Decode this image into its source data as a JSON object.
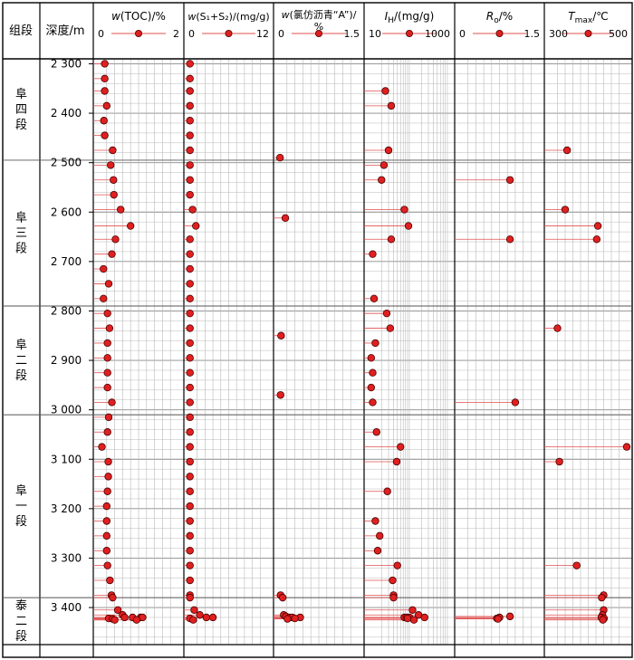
{
  "header": {
    "zone": "组段",
    "depth": "深度/m"
  },
  "colors": {
    "marker_fill": "#e02020",
    "marker_stroke": "#4a0000",
    "connector": "#e25050",
    "grid": "#b9b9b9",
    "frame": "#000000"
  },
  "chart_data": {
    "type": "scatter",
    "orientation": "depth-log",
    "depth_axis": {
      "label": "深度/m",
      "ylim": [
        2290,
        3475
      ],
      "ticks": [
        2300,
        2400,
        2500,
        2600,
        2700,
        2800,
        2900,
        3000,
        3100,
        3200,
        3300,
        3400
      ],
      "tick_labels": [
        "2 300",
        "2 400",
        "2 500",
        "2 600",
        "2 700",
        "2 800",
        "2 900",
        "3 000",
        "3 100",
        "3 200",
        "3 300",
        "3 400"
      ]
    },
    "zones": [
      {
        "name": "阜四段",
        "top": 2290,
        "bottom": 2495
      },
      {
        "name": "阜三段",
        "top": 2495,
        "bottom": 2790
      },
      {
        "name": "阜二段",
        "top": 2790,
        "bottom": 3010
      },
      {
        "name": "阜一段",
        "top": 3010,
        "bottom": 3380
      },
      {
        "name": "泰二段",
        "top": 3380,
        "bottom": 3475
      }
    ],
    "tracks": [
      {
        "id": "toc",
        "title": "w(TOC)/%",
        "scale_min_label": "0",
        "scale_max_label": "2",
        "scale": "linear",
        "xlim": [
          0,
          2
        ],
        "points": [
          [
            2300,
            0.15
          ],
          [
            2330,
            0.15
          ],
          [
            2355,
            0.15
          ],
          [
            2385,
            0.2
          ],
          [
            2415,
            0.13
          ],
          [
            2445,
            0.15
          ],
          [
            2475,
            0.35
          ],
          [
            2505,
            0.3
          ],
          [
            2535,
            0.37
          ],
          [
            2565,
            0.38
          ],
          [
            2595,
            0.55
          ],
          [
            2628,
            0.8
          ],
          [
            2655,
            0.42
          ],
          [
            2685,
            0.33
          ],
          [
            2715,
            0.12
          ],
          [
            2745,
            0.25
          ],
          [
            2775,
            0.12
          ],
          [
            2805,
            0.22
          ],
          [
            2835,
            0.27
          ],
          [
            2865,
            0.22
          ],
          [
            2895,
            0.22
          ],
          [
            2925,
            0.22
          ],
          [
            2955,
            0.22
          ],
          [
            2985,
            0.33
          ],
          [
            3015,
            0.25
          ],
          [
            3045,
            0.22
          ],
          [
            3075,
            0.08
          ],
          [
            3105,
            0.24
          ],
          [
            3135,
            0.24
          ],
          [
            3165,
            0.22
          ],
          [
            3195,
            0.2
          ],
          [
            3225,
            0.2
          ],
          [
            3255,
            0.2
          ],
          [
            3285,
            0.2
          ],
          [
            3315,
            0.22
          ],
          [
            3345,
            0.28
          ],
          [
            3375,
            0.32
          ],
          [
            3380,
            0.35
          ],
          [
            3405,
            0.48
          ],
          [
            3415,
            0.6
          ],
          [
            3420,
            0.65
          ],
          [
            3420,
            0.85
          ],
          [
            3420,
            1.05
          ],
          [
            3420,
            1.1
          ],
          [
            3422,
            0.25
          ],
          [
            3423,
            0.35
          ],
          [
            3425,
            0.4
          ],
          [
            3425,
            0.95
          ]
        ]
      },
      {
        "id": "s1s2",
        "title": "w(S₁+S₂)/(mg/g)",
        "scale_min_label": "0",
        "scale_max_label": "12",
        "scale": "linear",
        "xlim": [
          0,
          12
        ],
        "points": [
          [
            2300,
            0.1
          ],
          [
            2330,
            0.1
          ],
          [
            2355,
            0.1
          ],
          [
            2385,
            0.1
          ],
          [
            2415,
            0.1
          ],
          [
            2445,
            0.1
          ],
          [
            2475,
            0.1
          ],
          [
            2505,
            0.1
          ],
          [
            2535,
            0.1
          ],
          [
            2565,
            0.1
          ],
          [
            2595,
            0.5
          ],
          [
            2628,
            1.0
          ],
          [
            2655,
            0.1
          ],
          [
            2685,
            0.1
          ],
          [
            2715,
            0.1
          ],
          [
            2745,
            0.1
          ],
          [
            2775,
            0.1
          ],
          [
            2805,
            0.1
          ],
          [
            2835,
            0.1
          ],
          [
            2865,
            0.1
          ],
          [
            2895,
            0.1
          ],
          [
            2925,
            0.1
          ],
          [
            2955,
            0.1
          ],
          [
            2985,
            0.1
          ],
          [
            3015,
            0.1
          ],
          [
            3045,
            0.1
          ],
          [
            3075,
            0.1
          ],
          [
            3105,
            0.1
          ],
          [
            3135,
            0.1
          ],
          [
            3165,
            0.1
          ],
          [
            3195,
            0.1
          ],
          [
            3225,
            0.1
          ],
          [
            3255,
            0.1
          ],
          [
            3285,
            0.1
          ],
          [
            3315,
            0.1
          ],
          [
            3345,
            0.1
          ],
          [
            3375,
            0.1
          ],
          [
            3380,
            0.1
          ],
          [
            3405,
            0.75
          ],
          [
            3415,
            1.6
          ],
          [
            3420,
            2.6
          ],
          [
            3420,
            3.6
          ],
          [
            3422,
            0.1
          ],
          [
            3425,
            0.6
          ]
        ]
      },
      {
        "id": "chloroform",
        "title": "w(氯仿沥青“A”)/%",
        "scale_min_label": "0",
        "scale_max_label": "1.5",
        "scale": "linear",
        "xlim": [
          0,
          1.5
        ],
        "points": [
          [
            2490,
            0.02
          ],
          [
            2612,
            0.12
          ],
          [
            2850,
            0.04
          ],
          [
            2970,
            0.03
          ],
          [
            3375,
            0.03
          ],
          [
            3380,
            0.07
          ],
          [
            3415,
            0.09
          ],
          [
            3418,
            0.13
          ],
          [
            3420,
            0.2
          ],
          [
            3420,
            0.25
          ],
          [
            3420,
            0.4
          ],
          [
            3422,
            0.3
          ],
          [
            3423,
            0.16
          ]
        ]
      },
      {
        "id": "ih",
        "title": "I_H/(mg/g)",
        "scale_min_label": "10",
        "scale_max_label": "1000",
        "scale": "log",
        "xlim": [
          10,
          1000
        ],
        "points": [
          [
            2355,
            25
          ],
          [
            2385,
            35
          ],
          [
            2475,
            30
          ],
          [
            2505,
            23
          ],
          [
            2535,
            20
          ],
          [
            2595,
            75
          ],
          [
            2628,
            95
          ],
          [
            2655,
            35
          ],
          [
            2685,
            12
          ],
          [
            2775,
            13
          ],
          [
            2805,
            27
          ],
          [
            2835,
            33
          ],
          [
            2865,
            14
          ],
          [
            2895,
            11
          ],
          [
            2925,
            12
          ],
          [
            2955,
            11
          ],
          [
            2985,
            12
          ],
          [
            3045,
            15
          ],
          [
            3075,
            60
          ],
          [
            3105,
            48
          ],
          [
            3165,
            28
          ],
          [
            3225,
            14
          ],
          [
            3255,
            18
          ],
          [
            3285,
            16
          ],
          [
            3315,
            50
          ],
          [
            3345,
            38
          ],
          [
            3375,
            40
          ],
          [
            3380,
            40
          ],
          [
            3405,
            120
          ],
          [
            3415,
            170
          ],
          [
            3420,
            75
          ],
          [
            3420,
            85
          ],
          [
            3420,
            100
          ],
          [
            3420,
            240
          ],
          [
            3422,
            90
          ],
          [
            3425,
            130
          ]
        ]
      },
      {
        "id": "ro",
        "title": "R_o/%",
        "scale_min_label": "0",
        "scale_max_label": "1.5",
        "scale": "linear",
        "xlim": [
          0,
          1.5
        ],
        "points": [
          [
            2535,
            0.95
          ],
          [
            2655,
            0.95
          ],
          [
            2985,
            1.05
          ],
          [
            3418,
            0.95
          ],
          [
            3420,
            0.75
          ],
          [
            3422,
            0.7
          ],
          [
            3423,
            0.72
          ]
        ]
      },
      {
        "id": "tmax",
        "title": "T_max/℃",
        "scale_min_label": "300",
        "scale_max_label": "500",
        "scale": "linear",
        "xlim": [
          300,
          500
        ],
        "points": [
          [
            2475,
            345
          ],
          [
            2595,
            340
          ],
          [
            2628,
            425
          ],
          [
            2655,
            422
          ],
          [
            2835,
            320
          ],
          [
            3075,
            500
          ],
          [
            3105,
            325
          ],
          [
            3315,
            370
          ],
          [
            3375,
            440
          ],
          [
            3380,
            435
          ],
          [
            3405,
            440
          ],
          [
            3415,
            437
          ],
          [
            3420,
            434
          ],
          [
            3422,
            441
          ],
          [
            3425,
            438
          ]
        ]
      }
    ]
  }
}
